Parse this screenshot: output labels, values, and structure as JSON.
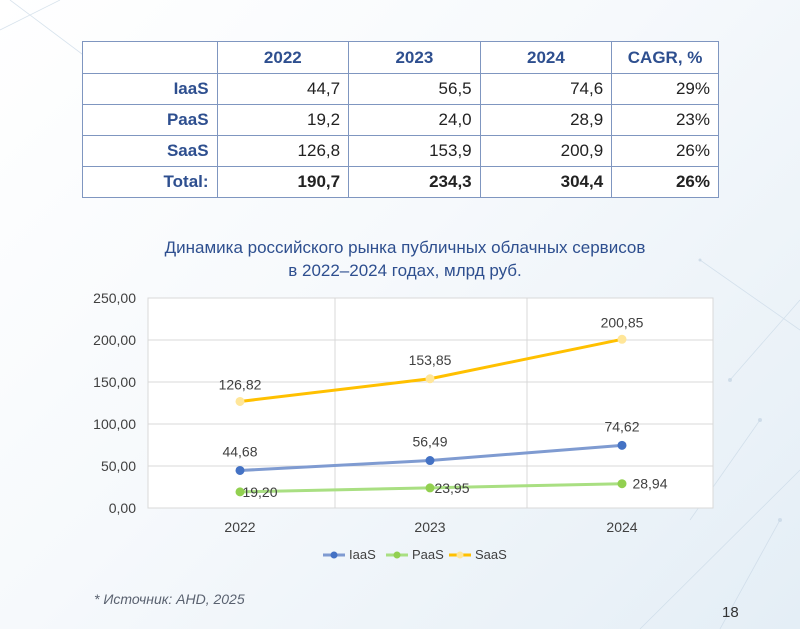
{
  "table": {
    "headers": [
      "",
      "2022",
      "2023",
      "2024",
      "CAGR, %"
    ],
    "rows": [
      {
        "label": "IaaS",
        "values": [
          "44,7",
          "56,5",
          "74,6",
          "29%"
        ]
      },
      {
        "label": "PaaS",
        "values": [
          "19,2",
          "24,0",
          "28,9",
          "23%"
        ]
      },
      {
        "label": "SaaS",
        "values": [
          "126,8",
          "153,9",
          "200,9",
          "26%"
        ]
      },
      {
        "label": "Total:",
        "values": [
          "190,7",
          "234,3",
          "304,4",
          "26%"
        ]
      }
    ]
  },
  "chart_data": {
    "type": "line",
    "title_line1": "Динамика российского рынка публичных облачных сервисов",
    "title_line2": "в 2022–2024 годах, млрд руб.",
    "categories": [
      "2022",
      "2023",
      "2024"
    ],
    "ylim": [
      0,
      250
    ],
    "yticks": [
      "0,00",
      "50,00",
      "100,00",
      "150,00",
      "200,00",
      "250,00"
    ],
    "grid": true,
    "legend_position": "bottom",
    "series": [
      {
        "name": "IaaS",
        "values": [
          44.68,
          56.49,
          74.62
        ],
        "labels": [
          "44,68",
          "56,49",
          "74,62"
        ],
        "color": "#7f9bd1",
        "marker_color": "#4472c4"
      },
      {
        "name": "PaaS",
        "values": [
          19.2,
          23.95,
          28.94
        ],
        "labels": [
          "19,20",
          "23,95",
          "28,94"
        ],
        "color": "#a9df82",
        "marker_color": "#92d050"
      },
      {
        "name": "SaaS",
        "values": [
          126.82,
          153.85,
          200.85
        ],
        "labels": [
          "126,82",
          "153,85",
          "200,85"
        ],
        "color": "#ffc000",
        "marker_color": "#ffe699"
      }
    ]
  },
  "footer": {
    "source": "* Источник: AHD, 2025",
    "page_number": "18"
  }
}
